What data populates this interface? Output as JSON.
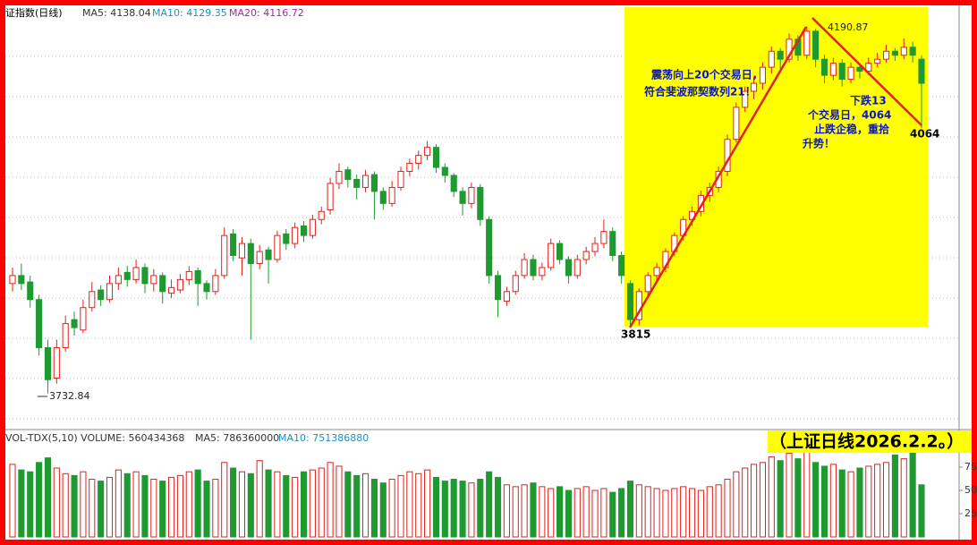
{
  "chart_data": {
    "type": "candlestick",
    "title": "证指数(日线)",
    "indicators": [
      {
        "label": "MA5: 4138.04",
        "color": "#333333"
      },
      {
        "label": "MA10: 4129.35",
        "color": "#1f8fc0"
      },
      {
        "label": "MA20: 4116.72",
        "color": "#9b2c9b"
      }
    ],
    "up_color": "#e3201b",
    "down_color": "#1e9a30",
    "ylim": [
      3690,
      4215
    ],
    "ohlc": [
      [
        3870,
        3890,
        3860,
        3880
      ],
      [
        3880,
        3895,
        3862,
        3870
      ],
      [
        3872,
        3880,
        3840,
        3850
      ],
      [
        3850,
        3856,
        3780,
        3790
      ],
      [
        3790,
        3800,
        3732.84,
        3750
      ],
      [
        3752,
        3800,
        3745,
        3790
      ],
      [
        3790,
        3830,
        3785,
        3820
      ],
      [
        3825,
        3835,
        3805,
        3815
      ],
      [
        3812,
        3850,
        3808,
        3840
      ],
      [
        3840,
        3872,
        3835,
        3860
      ],
      [
        3862,
        3868,
        3842,
        3850
      ],
      [
        3850,
        3880,
        3846,
        3870
      ],
      [
        3870,
        3890,
        3862,
        3880
      ],
      [
        3884,
        3892,
        3866,
        3875
      ],
      [
        3875,
        3900,
        3870,
        3890
      ],
      [
        3890,
        3895,
        3858,
        3870
      ],
      [
        3870,
        3888,
        3860,
        3880
      ],
      [
        3880,
        3884,
        3845,
        3860
      ],
      [
        3858,
        3875,
        3852,
        3865
      ],
      [
        3862,
        3882,
        3858,
        3875
      ],
      [
        3875,
        3892,
        3868,
        3885
      ],
      [
        3886,
        3890,
        3842,
        3870
      ],
      [
        3870,
        3874,
        3850,
        3860
      ],
      [
        3860,
        3888,
        3856,
        3880
      ],
      [
        3880,
        3940,
        3876,
        3930
      ],
      [
        3932,
        3938,
        3898,
        3905
      ],
      [
        3902,
        3928,
        3880,
        3920
      ],
      [
        3920,
        3926,
        3800,
        3895
      ],
      [
        3895,
        3918,
        3888,
        3910
      ],
      [
        3912,
        3916,
        3870,
        3900
      ],
      [
        3900,
        3936,
        3896,
        3930
      ],
      [
        3932,
        3938,
        3912,
        3920
      ],
      [
        3920,
        3946,
        3914,
        3940
      ],
      [
        3942,
        3948,
        3922,
        3930
      ],
      [
        3930,
        3956,
        3926,
        3950
      ],
      [
        3950,
        3966,
        3944,
        3960
      ],
      [
        3962,
        4002,
        3956,
        3995
      ],
      [
        3995,
        4020,
        3988,
        4010
      ],
      [
        4012,
        4016,
        3990,
        4000
      ],
      [
        4000,
        4006,
        3975,
        3990
      ],
      [
        3990,
        4012,
        3984,
        4005
      ],
      [
        4006,
        4010,
        3950,
        3985
      ],
      [
        3985,
        3990,
        3962,
        3970
      ],
      [
        3970,
        3998,
        3966,
        3990
      ],
      [
        3990,
        4016,
        3986,
        4010
      ],
      [
        4010,
        4026,
        4004,
        4020
      ],
      [
        4020,
        4036,
        4012,
        4030
      ],
      [
        4030,
        4048,
        4024,
        4040
      ],
      [
        4040,
        4044,
        4008,
        4015
      ],
      [
        4015,
        4020,
        3996,
        4005
      ],
      [
        4005,
        4008,
        3978,
        3985
      ],
      [
        3985,
        3990,
        3955,
        3970
      ],
      [
        3970,
        3996,
        3964,
        3990
      ],
      [
        3990,
        3994,
        3942,
        3950
      ],
      [
        3950,
        3954,
        3870,
        3880
      ],
      [
        3880,
        3886,
        3828,
        3850
      ],
      [
        3848,
        3866,
        3842,
        3860
      ],
      [
        3860,
        3886,
        3856,
        3880
      ],
      [
        3880,
        3908,
        3876,
        3900
      ],
      [
        3900,
        3906,
        3874,
        3880
      ],
      [
        3880,
        3896,
        3874,
        3890
      ],
      [
        3890,
        3926,
        3886,
        3920
      ],
      [
        3920,
        3924,
        3894,
        3900
      ],
      [
        3900,
        3904,
        3870,
        3880
      ],
      [
        3880,
        3906,
        3876,
        3900
      ],
      [
        3900,
        3916,
        3894,
        3910
      ],
      [
        3910,
        3928,
        3904,
        3920
      ],
      [
        3920,
        3950,
        3914,
        3935
      ],
      [
        3935,
        3940,
        3898,
        3905
      ],
      [
        3905,
        3910,
        3870,
        3880
      ],
      [
        3870,
        3874,
        3815,
        3825
      ],
      [
        3825,
        3864,
        3818,
        3860
      ],
      [
        3860,
        3884,
        3852,
        3880
      ],
      [
        3880,
        3896,
        3872,
        3890
      ],
      [
        3890,
        3914,
        3884,
        3910
      ],
      [
        3910,
        3934,
        3904,
        3930
      ],
      [
        3930,
        3954,
        3924,
        3950
      ],
      [
        3950,
        3966,
        3942,
        3960
      ],
      [
        3960,
        3986,
        3954,
        3980
      ],
      [
        3980,
        3996,
        3972,
        3990
      ],
      [
        3990,
        4016,
        3984,
        4010
      ],
      [
        4010,
        4056,
        4004,
        4050
      ],
      [
        4050,
        4096,
        4046,
        4090
      ],
      [
        4090,
        4116,
        4084,
        4110
      ],
      [
        4110,
        4128,
        4100,
        4120
      ],
      [
        4120,
        4146,
        4112,
        4140
      ],
      [
        4140,
        4166,
        4132,
        4160
      ],
      [
        4160,
        4164,
        4138,
        4150
      ],
      [
        4150,
        4182,
        4146,
        4175
      ],
      [
        4175,
        4180,
        4148,
        4155
      ],
      [
        4155,
        4190.87,
        4150,
        4185
      ],
      [
        4185,
        4188,
        4140,
        4150
      ],
      [
        4150,
        4156,
        4120,
        4130
      ],
      [
        4130,
        4152,
        4124,
        4145
      ],
      [
        4145,
        4150,
        4116,
        4125
      ],
      [
        4125,
        4146,
        4120,
        4140
      ],
      [
        4140,
        4144,
        4126,
        4135
      ],
      [
        4135,
        4152,
        4130,
        4145
      ],
      [
        4145,
        4158,
        4140,
        4150
      ],
      [
        4150,
        4168,
        4146,
        4160
      ],
      [
        4160,
        4164,
        4148,
        4155
      ],
      [
        4155,
        4176,
        4150,
        4165
      ],
      [
        4165,
        4172,
        4146,
        4155
      ],
      [
        4150,
        4155,
        4064,
        4120
      ]
    ],
    "high_label": "4190.87",
    "low_label": "3732.84",
    "rally_low_label": "3815",
    "pullback_low_label": "4064",
    "note_rally": [
      "震荡向上20个交易日，",
      "符合斐波那契数列21！"
    ],
    "note_pullback": [
      "下跌13",
      "个交易日，4064",
      "止跌企稳，重拾",
      "升势！"
    ],
    "volume": {
      "header": [
        {
          "label": "VOL-TDX(5,10) VOLUME: 560434368",
          "color": "#333333"
        },
        {
          "label": "MA5: 786360000",
          "color": "#333333"
        },
        {
          "label": "MA10: 751386880",
          "color": "#1f8fc0"
        }
      ],
      "ylim": [
        0,
        100
      ],
      "yticks": [
        25,
        50,
        75
      ],
      "values": [
        78,
        72,
        70,
        80,
        85,
        74,
        68,
        66,
        70,
        62,
        60,
        64,
        72,
        68,
        70,
        66,
        62,
        60,
        64,
        66,
        70,
        72,
        60,
        62,
        80,
        74,
        70,
        68,
        82,
        72,
        70,
        66,
        64,
        70,
        72,
        74,
        80,
        76,
        70,
        66,
        68,
        62,
        58,
        62,
        66,
        70,
        68,
        72,
        64,
        60,
        62,
        60,
        58,
        62,
        70,
        64,
        56,
        54,
        56,
        58,
        54,
        52,
        54,
        50,
        52,
        54,
        50,
        52,
        48,
        52,
        60,
        56,
        54,
        52,
        50,
        52,
        54,
        52,
        50,
        54,
        56,
        62,
        70,
        74,
        78,
        80,
        86,
        82,
        90,
        84,
        92,
        80,
        76,
        78,
        72,
        70,
        74,
        76,
        78,
        80,
        88,
        84,
        90,
        56
      ]
    },
    "caption": "（上证日线2026.2.2。）"
  }
}
